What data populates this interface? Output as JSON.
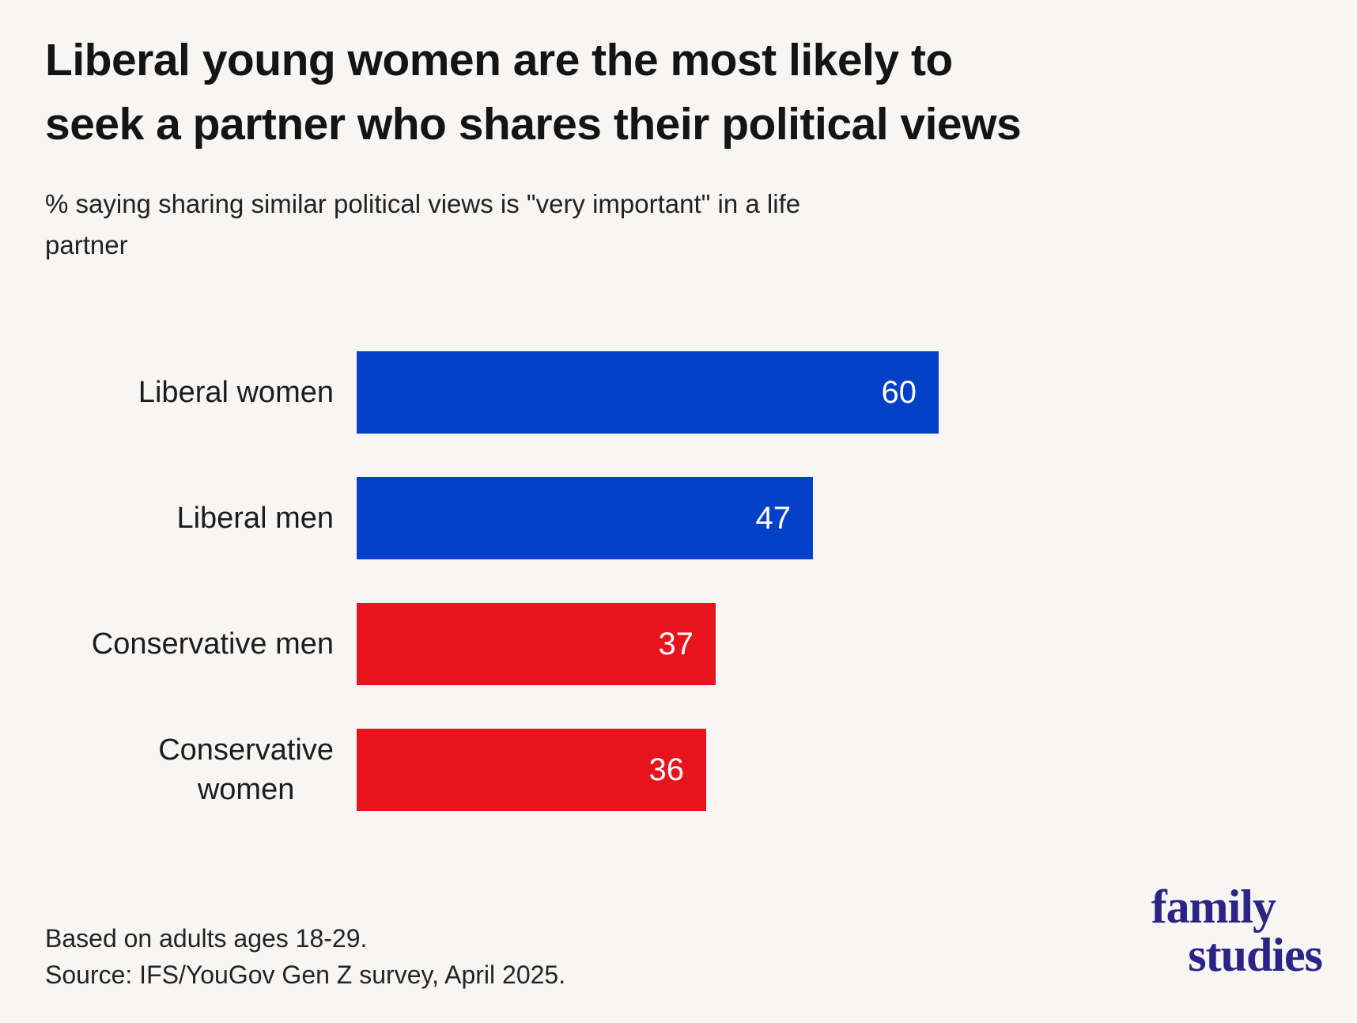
{
  "header": {
    "title_line1": "Liberal young women are the most likely to",
    "title_line2": "seek a partner who shares their political views",
    "subtitle_line1": "% saying sharing similar political views is \"very important\" in a life",
    "subtitle_line2": "partner"
  },
  "chart_data": {
    "type": "bar",
    "orientation": "horizontal",
    "title": "Liberal young women are the most likely to seek a partner who shares their political views",
    "subtitle": "% saying sharing similar political views is \"very important\" in a life partner",
    "categories": [
      "Liberal women",
      "Liberal men",
      "Conservative men",
      "Conservative women"
    ],
    "category_lines": [
      [
        "Liberal women"
      ],
      [
        "Liberal men"
      ],
      [
        "Conservative men"
      ],
      [
        "Conservative",
        "women"
      ]
    ],
    "values": [
      60,
      47,
      37,
      36
    ],
    "value_labels": [
      "60",
      "47",
      "37",
      "36"
    ],
    "unit": "percent",
    "xlim": [
      0,
      60
    ],
    "bar_colors": [
      "#0340c8",
      "#0340c8",
      "#e8141d",
      "#e8141d"
    ],
    "value_label_color": "#ffffff",
    "grid": false,
    "legend": "none",
    "value_labels_position": "inside-end"
  },
  "footer": {
    "line1": "Based on adults ages 18-29.",
    "line2": "Source: IFS/YouGov Gen Z survey, April 2025."
  },
  "logo": {
    "line1": "family",
    "line2": "studies",
    "color": "#2a2484"
  },
  "colors": {
    "background": "#f7f6f4",
    "liberal_blue": "#0340c8",
    "conservative_red": "#e8141d",
    "title_text": "#141414",
    "body_text": "#232323"
  }
}
